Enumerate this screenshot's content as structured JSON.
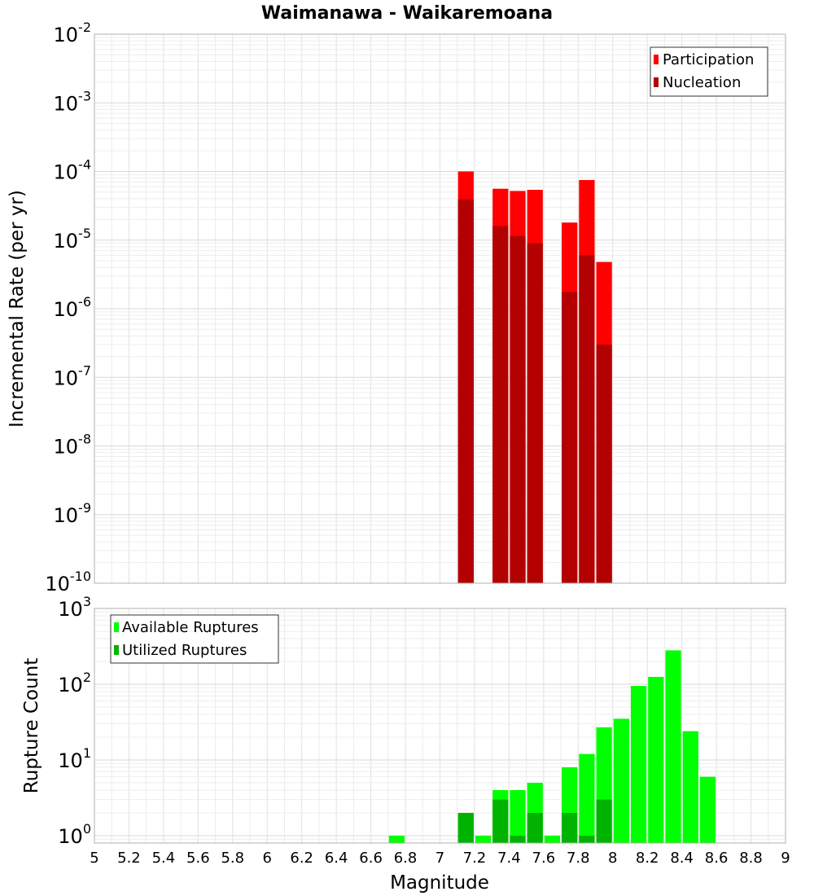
{
  "chart_data": [
    {
      "type": "bar",
      "title": "Waimanawa - Waikaremoana",
      "ylabel": "Incremental Rate (per yr)",
      "xlabel": "Magnitude",
      "yscale": "log",
      "ylim": [
        1e-10,
        0.01
      ],
      "xlim": [
        5,
        9
      ],
      "ytick_labels": [
        {
          "base": "10",
          "exp": "-10",
          "exponent": -10
        },
        {
          "base": "10",
          "exp": "-9",
          "exponent": -9
        },
        {
          "base": "10",
          "exp": "-8",
          "exponent": -8
        },
        {
          "base": "10",
          "exp": "-7",
          "exponent": -7
        },
        {
          "base": "10",
          "exp": "-6",
          "exponent": -6
        },
        {
          "base": "10",
          "exp": "-5",
          "exponent": -5
        },
        {
          "base": "10",
          "exp": "-4",
          "exponent": -4
        },
        {
          "base": "10",
          "exp": "-3",
          "exponent": -3
        },
        {
          "base": "10",
          "exp": "-2",
          "exponent": -2
        }
      ],
      "legend_position": "top-right",
      "series": [
        {
          "name": "Participation",
          "color": "#ff0000",
          "x": [
            7.1,
            7.3,
            7.4,
            7.5,
            7.7,
            7.8,
            7.9
          ],
          "values": [
            0.0001,
            5.6e-05,
            5.2e-05,
            5.4e-05,
            1.8e-05,
            7.5e-05,
            4.8e-06
          ]
        },
        {
          "name": "Nucleation",
          "color": "#b30000",
          "x": [
            7.1,
            7.3,
            7.4,
            7.5,
            7.7,
            7.8,
            7.9
          ],
          "values": [
            3.9e-05,
            1.6e-05,
            1.15e-05,
            9e-06,
            1.75e-06,
            6e-06,
            3e-07
          ]
        }
      ]
    },
    {
      "type": "bar",
      "title": "",
      "ylabel": "Rupture Count",
      "xlabel": "Magnitude",
      "yscale": "log",
      "ylim": [
        0.8,
        1000
      ],
      "xlim": [
        5,
        9
      ],
      "ytick_labels": [
        {
          "base": "10",
          "exp": "0",
          "exponent": 0
        },
        {
          "base": "10",
          "exp": "1",
          "exponent": 1
        },
        {
          "base": "10",
          "exp": "2",
          "exponent": 2
        },
        {
          "base": "10",
          "exp": "3",
          "exponent": 3
        }
      ],
      "xtick_labels": [
        "5",
        "5.2",
        "5.4",
        "5.6",
        "5.8",
        "6",
        "6.2",
        "6.4",
        "6.6",
        "6.8",
        "7",
        "7.2",
        "7.4",
        "7.6",
        "7.8",
        "8",
        "8.2",
        "8.4",
        "8.6",
        "8.8",
        "9"
      ],
      "legend_position": "top-left",
      "series": [
        {
          "name": "Available Ruptures",
          "color": "#00ff00",
          "x": [
            6.7,
            7.1,
            7.2,
            7.3,
            7.4,
            7.5,
            7.6,
            7.7,
            7.8,
            7.9,
            8.0,
            8.1,
            8.2,
            8.3,
            8.4,
            8.5
          ],
          "values": [
            1,
            2,
            1,
            4,
            4,
            5,
            1,
            8,
            12,
            27,
            35,
            95,
            125,
            280,
            24,
            6
          ]
        },
        {
          "name": "Utilized Ruptures",
          "color": "#00b300",
          "x": [
            7.1,
            7.3,
            7.4,
            7.5,
            7.7,
            7.8,
            7.9
          ],
          "values": [
            2,
            3,
            1,
            2,
            2,
            1,
            3
          ]
        }
      ]
    }
  ]
}
